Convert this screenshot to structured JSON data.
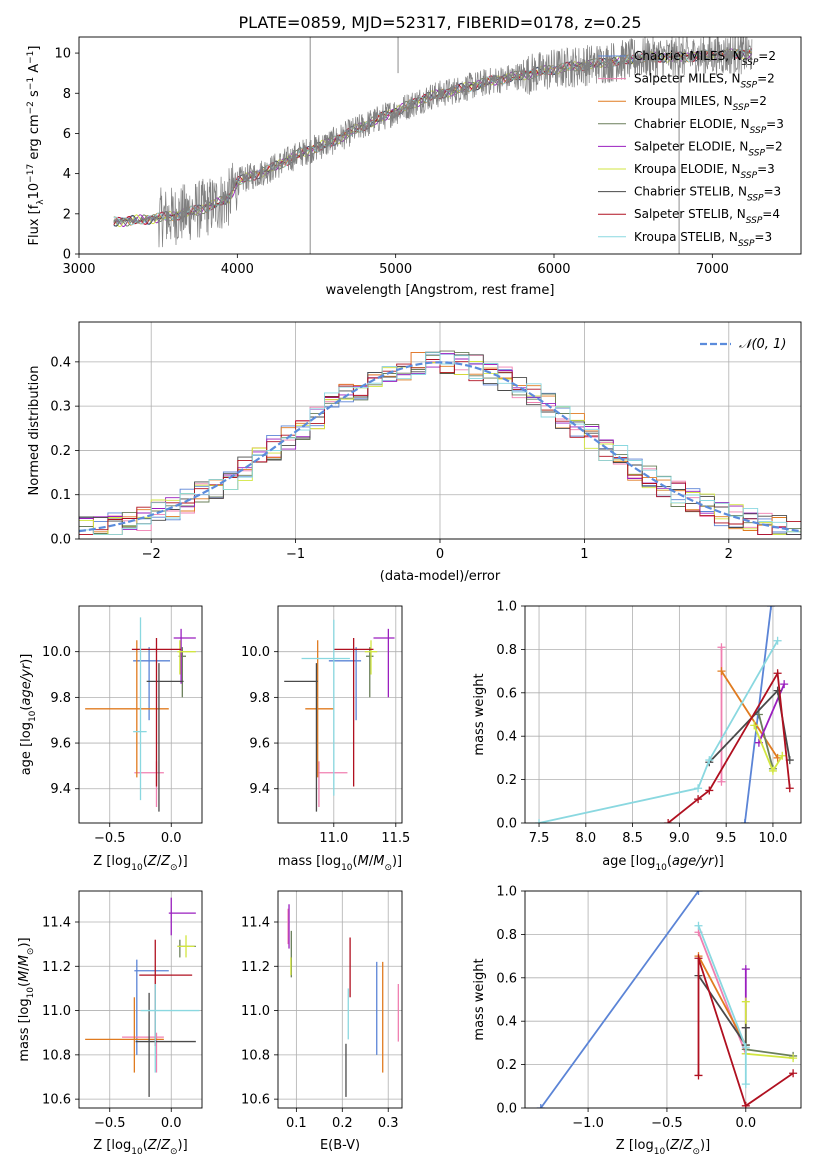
{
  "figure_title": "PLATE=0859, MJD=52317, FIBERID=0178, z=0.25",
  "colors": {
    "chabrier_miles": "#5b84d6",
    "salpeter_miles": "#f07fb0",
    "kroupa_miles": "#e07b20",
    "chabrier_elodie": "#6a7f5a",
    "salpeter_elodie": "#9a1fbf",
    "kroupa_elodie": "#d2e640",
    "chabrier_stelib": "#4a4a4a",
    "salpeter_stelib": "#b01020",
    "kroupa_stelib": "#8ad8e0",
    "spectrum": "#808080",
    "normal": "#5b8cdc",
    "grid": "#b0b0b0"
  },
  "chart_data": [
    {
      "id": "spectrum",
      "type": "line",
      "title": "PLATE=0859, MJD=52317, FIBERID=0178, z=0.25",
      "xlabel": "wavelength [Angstrom, rest frame]",
      "ylabel": "Flux [f_λ10^-17 erg cm^-2 s^-1 A^-1]",
      "xlim": [
        3000,
        7560
      ],
      "ylim": [
        0,
        10.8
      ],
      "xticks": [
        3000,
        4000,
        5000,
        6000,
        7000
      ],
      "yticks": [
        0,
        2,
        4,
        6,
        8,
        10
      ],
      "grid": false,
      "legend_position": "top-right",
      "legend": [
        {
          "label": "Chabrier MILES, N",
          "sub": "SSP",
          "suffix": "=2"
        },
        {
          "label": "Salpeter MILES, N",
          "sub": "SSP",
          "suffix": "=2"
        },
        {
          "label": "Kroupa MILES, N",
          "sub": "SSP",
          "suffix": "=2"
        },
        {
          "label": "Chabrier ELODIE, N",
          "sub": "SSP",
          "suffix": "=3"
        },
        {
          "label": "Salpeter ELODIE, N",
          "sub": "SSP",
          "suffix": "=2"
        },
        {
          "label": "Kroupa ELODIE, N",
          "sub": "SSP",
          "suffix": "=3"
        },
        {
          "label": "Chabrier STELIB, N",
          "sub": "SSP",
          "suffix": "=3"
        },
        {
          "label": "Salpeter STELIB, N",
          "sub": "SSP",
          "suffix": "=4"
        },
        {
          "label": "Kroupa STELIB, N",
          "sub": "SSP",
          "suffix": "=3"
        }
      ],
      "continuum": {
        "x": [
          3220,
          3400,
          3600,
          3800,
          3950,
          4000,
          4200,
          4400,
          4600,
          4800,
          5000,
          5200,
          5400,
          5600,
          5800,
          6000,
          6200,
          6400,
          6600,
          6800,
          7000,
          7250
        ],
        "y": [
          1.6,
          1.7,
          1.9,
          2.3,
          2.8,
          3.6,
          4.2,
          5.0,
          5.6,
          6.4,
          7.1,
          7.8,
          8.2,
          8.6,
          8.9,
          9.2,
          9.4,
          9.6,
          9.8,
          9.8,
          9.9,
          10.0
        ]
      }
    },
    {
      "id": "residuals",
      "type": "histogram",
      "xlabel": "(data-model)/error",
      "ylabel": "Normed distribution",
      "xlim": [
        -2.5,
        2.5
      ],
      "ylim": [
        0,
        0.49
      ],
      "xticks": [
        -2,
        -1,
        0,
        1,
        2
      ],
      "yticks": [
        0.0,
        0.1,
        0.2,
        0.3,
        0.4
      ],
      "grid": true,
      "legend_position": "top-right",
      "legend": "𝒩(0, 1)",
      "bin_width": 0.1
    },
    {
      "id": "age_vs_Z",
      "type": "errorbar",
      "xlabel": "Z [log10(Z/Z⊙)]",
      "ylabel": "age [log10(age/yr)]",
      "xlim": [
        -0.75,
        0.25
      ],
      "ylim": [
        9.25,
        10.2
      ],
      "xticks": [
        -0.5,
        0.0
      ],
      "yticks": [
        9.4,
        9.6,
        9.8,
        10.0
      ],
      "grid": true,
      "points": [
        {
          "model": "chabrier_miles",
          "x": -0.18,
          "xerr": [
            0.13,
            0.17
          ],
          "y": 9.96,
          "yerr": [
            0.26,
            0.06
          ]
        },
        {
          "model": "salpeter_miles",
          "x": -0.12,
          "xerr": [
            0.18,
            0.06
          ],
          "y": 9.47,
          "yerr": [
            0.15,
            0.05
          ]
        },
        {
          "model": "kroupa_miles",
          "x": -0.28,
          "xerr": [
            0.42,
            0.26
          ],
          "y": 9.75,
          "yerr": [
            0.3,
            0.3
          ]
        },
        {
          "model": "chabrier_elodie",
          "x": 0.09,
          "xerr": [
            0.03,
            0.03
          ],
          "y": 9.98,
          "yerr": [
            0.18,
            0.04
          ]
        },
        {
          "model": "salpeter_elodie",
          "x": 0.08,
          "xerr": [
            0.06,
            0.12
          ],
          "y": 10.06,
          "yerr": [
            0.2,
            0.04
          ]
        },
        {
          "model": "kroupa_elodie",
          "x": 0.07,
          "xerr": [
            0.02,
            0.13
          ],
          "y": 10.0,
          "yerr": [
            0.1,
            0.05
          ]
        },
        {
          "model": "chabrier_stelib",
          "x": -0.1,
          "xerr": [
            0.1,
            0.2
          ],
          "y": 9.87,
          "yerr": [
            0.57,
            0.08
          ]
        },
        {
          "model": "salpeter_stelib",
          "x": -0.12,
          "xerr": [
            0.2,
            0.2
          ],
          "y": 10.01,
          "yerr": [
            0.6,
            0.05
          ]
        },
        {
          "model": "kroupa_stelib",
          "x": -0.25,
          "xerr": [
            0.06,
            0.05
          ],
          "y": 9.65,
          "yerr": [
            0.3,
            0.5
          ]
        }
      ]
    },
    {
      "id": "age_vs_mass",
      "type": "errorbar",
      "xlabel": "mass [log10(M/M⊙)]",
      "ylabel": "",
      "xlim": [
        10.55,
        11.55
      ],
      "ylim": [
        9.25,
        10.2
      ],
      "xticks": [
        11.0,
        11.5
      ],
      "yticks": [
        9.4,
        9.6,
        9.8,
        10.0
      ],
      "grid": true,
      "points": [
        {
          "model": "chabrier_miles",
          "x": 11.18,
          "xerr": [
            0.22,
            0.04
          ],
          "y": 9.96,
          "yerr": [
            0.26,
            0.06
          ]
        },
        {
          "model": "salpeter_miles",
          "x": 10.88,
          "xerr": [
            0.02,
            0.23
          ],
          "y": 9.47,
          "yerr": [
            0.15,
            0.05
          ]
        },
        {
          "model": "kroupa_miles",
          "x": 10.87,
          "xerr": [
            0.1,
            0.13
          ],
          "y": 9.75,
          "yerr": [
            0.3,
            0.3
          ]
        },
        {
          "model": "chabrier_elodie",
          "x": 11.29,
          "xerr": [
            0.03,
            0.03
          ],
          "y": 9.98,
          "yerr": [
            0.18,
            0.04
          ]
        },
        {
          "model": "salpeter_elodie",
          "x": 11.44,
          "xerr": [
            0.12,
            0.05
          ],
          "y": 10.06,
          "yerr": [
            0.26,
            0.04
          ]
        },
        {
          "model": "kroupa_elodie",
          "x": 11.3,
          "xerr": [
            0.05,
            0.05
          ],
          "y": 10.0,
          "yerr": [
            0.1,
            0.05
          ]
        },
        {
          "model": "chabrier_stelib",
          "x": 10.86,
          "xerr": [
            0.26,
            0.01
          ],
          "y": 9.87,
          "yerr": [
            0.57,
            0.08
          ]
        },
        {
          "model": "salpeter_stelib",
          "x": 11.16,
          "xerr": [
            0.16,
            0.16
          ],
          "y": 10.01,
          "yerr": [
            0.6,
            0.05
          ]
        },
        {
          "model": "kroupa_stelib",
          "x": 11.0,
          "xerr": [
            0.26,
            0.13
          ],
          "y": 9.97,
          "yerr": [
            0.6,
            0.17
          ]
        }
      ]
    },
    {
      "id": "massweight_vs_age",
      "type": "line",
      "xlabel": "age [log10(age/yr)]",
      "ylabel": "mass weight",
      "xlim": [
        7.35,
        10.3
      ],
      "ylim": [
        0,
        1
      ],
      "xticks": [
        7.5,
        8.0,
        8.5,
        9.0,
        9.5,
        10.0
      ],
      "yticks": [
        0.0,
        0.2,
        0.4,
        0.6,
        0.8,
        1.0
      ],
      "grid": true,
      "series": [
        {
          "model": "chabrier_miles",
          "x": [
            9.7,
            9.98
          ],
          "y": [
            0.0,
            1.0
          ]
        },
        {
          "model": "salpeter_miles",
          "x": [
            9.45,
            9.45
          ],
          "y": [
            0.19,
            0.81
          ]
        },
        {
          "model": "kroupa_miles",
          "x": [
            9.45,
            10.05
          ],
          "y": [
            0.7,
            0.3
          ]
        },
        {
          "model": "chabrier_elodie",
          "x": [
            9.85,
            10.0
          ],
          "y": [
            0.5,
            0.25
          ]
        },
        {
          "model": "salpeter_elodie",
          "x": [
            9.85,
            10.12
          ],
          "y": [
            0.37,
            0.64
          ]
        },
        {
          "model": "kroupa_elodie",
          "x": [
            9.8,
            10.0,
            10.1
          ],
          "y": [
            0.45,
            0.24,
            0.31
          ]
        },
        {
          "model": "chabrier_stelib",
          "x": [
            9.32,
            10.05,
            10.18
          ],
          "y": [
            0.28,
            0.61,
            0.29
          ]
        },
        {
          "model": "salpeter_stelib",
          "x": [
            8.88,
            9.2,
            9.32,
            10.05,
            10.18
          ],
          "y": [
            0.0,
            0.11,
            0.15,
            0.69,
            0.16
          ]
        },
        {
          "model": "kroupa_stelib",
          "x": [
            7.5,
            9.2,
            9.32,
            10.05
          ],
          "y": [
            0.0,
            0.16,
            0.29,
            0.84
          ]
        }
      ]
    },
    {
      "id": "mass_vs_Z",
      "type": "errorbar",
      "xlabel": "Z [log10(Z/Z⊙)]",
      "ylabel": "mass [log10(M/M⊙)]",
      "xlim": [
        -0.75,
        0.25
      ],
      "ylim": [
        10.56,
        11.54
      ],
      "xticks": [
        -0.5,
        0.0
      ],
      "yticks": [
        10.6,
        10.8,
        11.0,
        11.2,
        11.4
      ],
      "grid": true,
      "points": [
        {
          "model": "chabrier_miles",
          "x": -0.28,
          "xerr": [
            0.02,
            0.26
          ],
          "y": 11.18,
          "yerr": [
            0.38,
            0.05
          ]
        },
        {
          "model": "salpeter_miles",
          "x": -0.12,
          "xerr": [
            0.28,
            0.06
          ],
          "y": 10.88,
          "yerr": [
            0.16,
            0.02
          ]
        },
        {
          "model": "kroupa_miles",
          "x": -0.3,
          "xerr": [
            0.4,
            0.24
          ],
          "y": 10.87,
          "yerr": [
            0.15,
            0.19
          ]
        },
        {
          "model": "chabrier_elodie",
          "x": 0.07,
          "xerr": [
            0.02,
            0.13
          ],
          "y": 11.29,
          "yerr": [
            0.05,
            0.03
          ]
        },
        {
          "model": "salpeter_elodie",
          "x": 0.0,
          "xerr": [
            0.02,
            0.2
          ],
          "y": 11.44,
          "yerr": [
            0.1,
            0.07
          ]
        },
        {
          "model": "kroupa_elodie",
          "x": 0.12,
          "xerr": [
            0.07,
            0.07
          ],
          "y": 11.29,
          "yerr": [
            0.05,
            0.05
          ]
        },
        {
          "model": "chabrier_stelib",
          "x": -0.18,
          "xerr": [
            0.11,
            0.38
          ],
          "y": 10.86,
          "yerr": [
            0.25,
            0.22
          ]
        },
        {
          "model": "salpeter_stelib",
          "x": -0.13,
          "xerr": [
            0.13,
            0.3
          ],
          "y": 11.16,
          "yerr": [
            0.32,
            0.16
          ]
        },
        {
          "model": "kroupa_stelib",
          "x": -0.13,
          "xerr": [
            0.12,
            0.36
          ],
          "y": 11.0,
          "yerr": [
            0.28,
            0.12
          ]
        }
      ]
    },
    {
      "id": "mass_vs_ebv",
      "type": "errorbar",
      "xlabel": "E(B-V)",
      "ylabel": "",
      "xlim": [
        0.06,
        0.33
      ],
      "ylim": [
        10.56,
        11.54
      ],
      "xticks": [
        0.1,
        0.2,
        0.3
      ],
      "yticks": [
        10.6,
        10.8,
        11.0,
        11.2,
        11.4
      ],
      "grid": true,
      "points": [
        {
          "model": "chabrier_miles",
          "x": 0.275,
          "xerr": [
            0,
            0
          ],
          "y": 11.06,
          "yerr": [
            0.26,
            0.16
          ]
        },
        {
          "model": "salpeter_miles",
          "x": 0.082,
          "xerr": [
            0,
            0
          ],
          "y": 11.4,
          "yerr": [
            0.1,
            0.06
          ]
        },
        {
          "model": "kroupa_miles",
          "x": 0.288,
          "xerr": [
            0,
            0
          ],
          "y": 10.98,
          "yerr": [
            0.26,
            0.24
          ]
        },
        {
          "model": "chabrier_elodie",
          "x": 0.089,
          "xerr": [
            0,
            0
          ],
          "y": 11.26,
          "yerr": [
            0.11,
            0.1
          ]
        },
        {
          "model": "salpeter_elodie",
          "x": 0.084,
          "xerr": [
            0,
            0
          ],
          "y": 11.38,
          "yerr": [
            0.1,
            0.1
          ]
        },
        {
          "model": "kroupa_elodie",
          "x": 0.088,
          "xerr": [
            0,
            0
          ],
          "y": 11.2,
          "yerr": [
            0.04,
            0.04
          ]
        },
        {
          "model": "chabrier_stelib",
          "x": 0.208,
          "xerr": [
            0,
            0
          ],
          "y": 10.73,
          "yerr": [
            0.12,
            0.12
          ]
        },
        {
          "model": "salpeter_stelib",
          "x": 0.217,
          "xerr": [
            0,
            0
          ],
          "y": 11.2,
          "yerr": [
            0.14,
            0.13
          ]
        },
        {
          "model": "kroupa_stelib",
          "x": 0.213,
          "xerr": [
            0,
            0
          ],
          "y": 11.0,
          "yerr": [
            0.13,
            0.1
          ]
        },
        {
          "model": "salpeter_miles",
          "x": 0.322,
          "xerr": [
            0,
            0
          ],
          "y": 10.99,
          "yerr": [
            0.13,
            0.13
          ]
        }
      ]
    },
    {
      "id": "massweight_vs_Z",
      "type": "line",
      "xlabel": "Z [log10(Z/Z⊙)]",
      "ylabel": "mass weight",
      "xlim": [
        -1.4,
        0.35
      ],
      "ylim": [
        0,
        1
      ],
      "xticks": [
        -1.0,
        -0.5,
        0.0
      ],
      "yticks": [
        0.0,
        0.2,
        0.4,
        0.6,
        0.8,
        1.0
      ],
      "grid": true,
      "series": [
        {
          "model": "chabrier_miles",
          "x": [
            -1.3,
            -0.3
          ],
          "y": [
            0.0,
            1.0
          ]
        },
        {
          "model": "salpeter_miles",
          "x": [
            -0.3,
            0.0
          ],
          "y": [
            0.81,
            0.25
          ]
        },
        {
          "model": "kroupa_miles",
          "x": [
            -0.3,
            0.0
          ],
          "y": [
            0.7,
            0.29
          ]
        },
        {
          "model": "chabrier_elodie",
          "x": [
            0.0,
            0.3
          ],
          "y": [
            0.27,
            0.24
          ]
        },
        {
          "model": "salpeter_elodie",
          "x": [
            0.0,
            0.0
          ],
          "y": [
            0.37,
            0.64
          ]
        },
        {
          "model": "kroupa_elodie",
          "x": [
            0.0,
            0.0,
            0.3
          ],
          "y": [
            0.49,
            0.25,
            0.23
          ]
        },
        {
          "model": "chabrier_stelib",
          "x": [
            -0.3,
            0.0,
            0.0
          ],
          "y": [
            0.61,
            0.29,
            0.37
          ]
        },
        {
          "model": "salpeter_stelib",
          "x": [
            -0.3,
            -0.3,
            0.0,
            0.3
          ],
          "y": [
            0.15,
            0.69,
            0.01,
            0.16
          ]
        },
        {
          "model": "kroupa_stelib",
          "x": [
            -0.3,
            0.0,
            0.0
          ],
          "y": [
            0.84,
            0.28,
            0.11
          ]
        }
      ]
    }
  ]
}
